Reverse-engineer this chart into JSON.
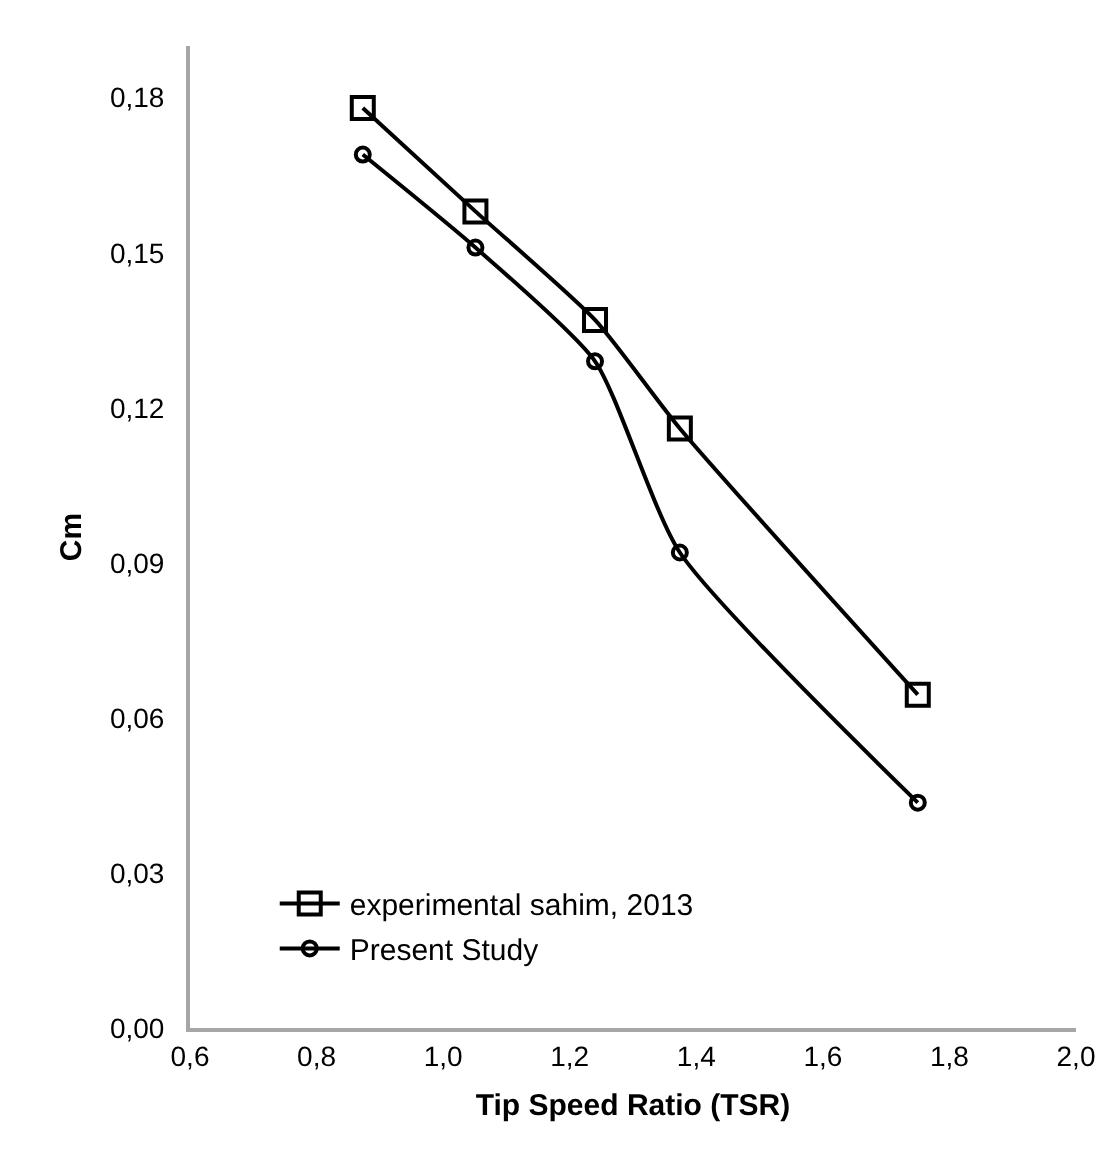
{
  "chart_data": {
    "type": "line",
    "xlabel": "Tip Speed Ratio (TSR)",
    "ylabel": "Cm",
    "xlim": [
      0.6,
      2.0
    ],
    "xticks": [
      {
        "value": 0.6,
        "label": "0,6"
      },
      {
        "value": 0.8,
        "label": "0,8"
      },
      {
        "value": 1.0,
        "label": "1,0"
      },
      {
        "value": 1.2,
        "label": "1,2"
      },
      {
        "value": 1.4,
        "label": "1,4"
      },
      {
        "value": 1.6,
        "label": "1,6"
      },
      {
        "value": 1.8,
        "label": "1,8"
      },
      {
        "value": 2.0,
        "label": "2,0"
      }
    ],
    "ylim": [
      0,
      0.19
    ],
    "yticks": [
      {
        "value": 0,
        "label": "0,00"
      },
      {
        "value": 0.03,
        "label": "0,03"
      },
      {
        "value": 0.06,
        "label": "0,06"
      },
      {
        "value": 0.09,
        "label": "0,09"
      },
      {
        "value": 0.12,
        "label": "0,12"
      },
      {
        "value": 0.15,
        "label": "0,15"
      },
      {
        "value": 0.18,
        "label": "0,18"
      }
    ],
    "grid": false,
    "legend": "bottom left",
    "series": [
      {
        "name": "experimental sahim, 2013",
        "color": "#000000",
        "marker": "square",
        "x": [
          0.873,
          1.051,
          1.24,
          1.374,
          1.75
        ],
        "values": [
          0.178,
          0.158,
          0.137,
          0.116,
          0.0645
        ]
      },
      {
        "name": "Present Study",
        "color": "#000000",
        "marker": "circle",
        "x": [
          0.873,
          1.051,
          1.24,
          1.374,
          1.75
        ],
        "values": [
          0.169,
          0.151,
          0.129,
          0.092,
          0.0436
        ]
      }
    ]
  }
}
